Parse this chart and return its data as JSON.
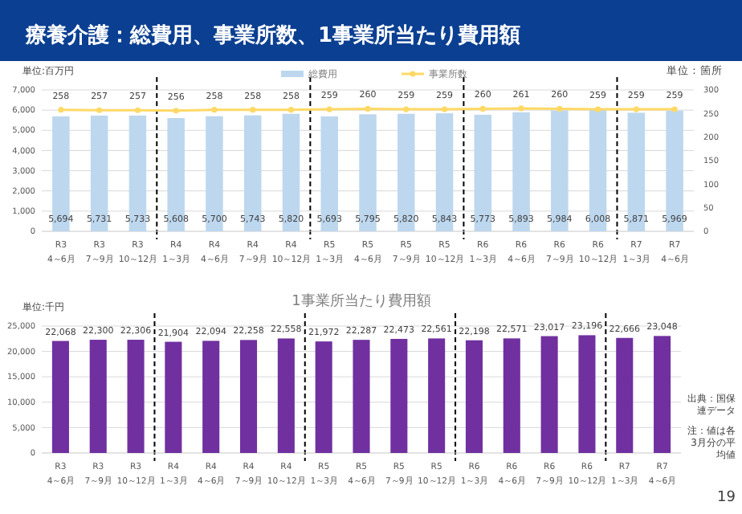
{
  "chart_data": [
    {
      "type": "bar",
      "title": "療養介護：総費用、事業所数、1事業所当たり費用額",
      "ylabel": "単位:百万円",
      "y2label": "単位：箇所",
      "categories": [
        "R3\n4～6月",
        "R3\n7～9月",
        "R3\n10～12月",
        "R4\n1～3月",
        "R4\n4～6月",
        "R4\n7～9月",
        "R4\n10～12月",
        "R5\n1～3月",
        "R5\n4～6月",
        "R5\n7～9月",
        "R5\n10～12月",
        "R6\n1～3月",
        "R6\n4～6月",
        "R6\n7～9月",
        "R6\n10～12月",
        "R7\n1～3月",
        "R7\n4～6月"
      ],
      "series": [
        {
          "name": "総費用",
          "color": "#bdd7ee",
          "values": [
            5694,
            5731,
            5733,
            5608,
            5700,
            5743,
            5820,
            5693,
            5795,
            5820,
            5843,
            5773,
            5893,
            5984,
            6008,
            5871,
            5969
          ],
          "value_labels": [
            "5,694",
            "5,731",
            "5,733",
            "5,608",
            "5,700",
            "5,743",
            "5,820",
            "5,693",
            "5,795",
            "5,820",
            "5,843",
            "5,773",
            "5,893",
            "5,984",
            "6,008",
            "5,871",
            "5,969"
          ]
        },
        {
          "name": "事業所数",
          "type": "line",
          "axis": "y2",
          "color": "#ffd966",
          "marker": "circle",
          "values": [
            258,
            257,
            257,
            256,
            258,
            258,
            258,
            259,
            260,
            259,
            259,
            260,
            261,
            260,
            259,
            259,
            259
          ],
          "value_labels": [
            "258",
            "257",
            "257",
            "256",
            "258",
            "258",
            "258",
            "259",
            "260",
            "259",
            "259",
            "260",
            "261",
            "260",
            "259",
            "259",
            "259"
          ]
        }
      ],
      "ylim": [
        0,
        7000
      ],
      "yticks": [
        0,
        {
          "value": 1000,
          "label": "1,000"
        },
        {
          "value": 2000,
          "label": "2,000"
        },
        {
          "value": 3000,
          "label": "3,000"
        },
        {
          "value": 4000,
          "label": "4,000"
        },
        {
          "value": 5000,
          "label": "5,000"
        },
        {
          "value": 6000,
          "label": "6,000"
        },
        {
          "value": 7000,
          "label": "7,000"
        }
      ],
      "y2lim": [
        0,
        300
      ],
      "y2ticks": [
        0,
        50,
        100,
        150,
        200,
        250,
        300
      ],
      "grid": "y",
      "legend": "top"
    },
    {
      "type": "bar",
      "title": "1事業所当たり費用額",
      "ylabel": "単位:千円",
      "categories": [
        "R3\n4～6月",
        "R3\n7～9月",
        "R3\n10～12月",
        "R4\n1～3月",
        "R4\n4～6月",
        "R4\n7～9月",
        "R4\n10～12月",
        "R5\n1～3月",
        "R5\n4～6月",
        "R5\n7～9月",
        "R5\n10～12月",
        "R6\n1～3月",
        "R6\n4～6月",
        "R6\n7～9月",
        "R6\n10～12月",
        "R7\n1～3月",
        "R7\n4～6月"
      ],
      "values": [
        22068,
        22300,
        22306,
        21904,
        22094,
        22258,
        22558,
        21972,
        22287,
        22473,
        22561,
        22198,
        22571,
        23017,
        23196,
        22666,
        23048
      ],
      "color": "#7030a0",
      "value_labels": [
        "22,068",
        "22,300",
        "22,306",
        "21,904",
        "22,094",
        "22,258",
        "22,558",
        "21,972",
        "22,287",
        "22,473",
        "22,561",
        "22,198",
        "22,571",
        "23,017",
        "23,196",
        "22,666",
        "23,048"
      ],
      "ylim": [
        0,
        25000
      ],
      "yticks": [
        0,
        {
          "value": 5000,
          "label": "5,000"
        },
        {
          "value": 10000,
          "label": "10,000"
        },
        {
          "value": 15000,
          "label": "15,000"
        },
        {
          "value": 20000,
          "label": "20,000"
        },
        {
          "value": 25000,
          "label": "25,000"
        }
      ],
      "grid": "y",
      "annotations": [
        "出典：国保連データ",
        "注：値は各3月分の平均値",
        "19"
      ]
    }
  ]
}
